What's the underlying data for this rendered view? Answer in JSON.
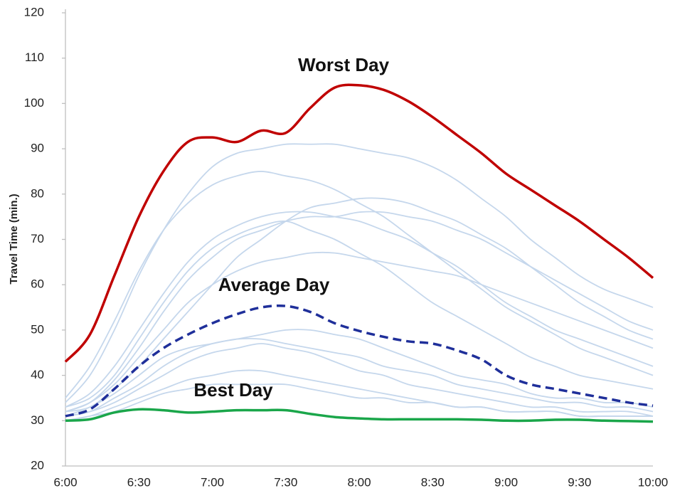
{
  "chart_data": {
    "type": "line",
    "y_label": "Travel Time (min.)",
    "categories": [
      "6:00",
      null,
      null,
      "6:30",
      null,
      null,
      "7:00",
      null,
      null,
      "7:30",
      null,
      null,
      "8:00",
      null,
      null,
      "8:30",
      null,
      null,
      "9:00",
      null,
      null,
      "9:30",
      null,
      null,
      "10:00"
    ],
    "ylim": [
      20,
      120
    ],
    "yticks": [
      20,
      30,
      40,
      50,
      60,
      70,
      80,
      90,
      100,
      110,
      120
    ],
    "annotations": [
      "Worst Day",
      "Average Day",
      "Best Day"
    ],
    "series": [
      {
        "color": "#c5d7ec",
        "values": [
          33,
          36,
          42,
          50,
          58,
          65,
          70,
          73,
          75,
          76,
          76,
          75,
          74,
          72,
          70,
          67,
          64,
          60,
          56,
          53,
          50,
          48,
          46,
          44,
          42
        ]
      },
      {
        "color": "#c5d7ec",
        "values": [
          34,
          40,
          50,
          62,
          72,
          80,
          86,
          89,
          90,
          91,
          91,
          91,
          90,
          89,
          88,
          86,
          83,
          79,
          75,
          70,
          66,
          62,
          59,
          57,
          55
        ]
      },
      {
        "color": "#c5d7ec",
        "values": [
          31,
          33,
          36,
          40,
          44,
          46,
          47,
          48,
          48,
          47,
          46,
          45,
          44,
          42,
          41,
          40,
          38,
          37,
          36,
          35,
          34,
          34,
          33,
          33,
          32
        ]
      },
      {
        "color": "#c5d7ec",
        "values": [
          30,
          31,
          33,
          35,
          37,
          39,
          40,
          41,
          41,
          40,
          39,
          38,
          37,
          36,
          35,
          34,
          33,
          33,
          32,
          32,
          32,
          31,
          31,
          31,
          31
        ]
      },
      {
        "color": "#c5d7ec",
        "values": [
          32,
          34,
          39,
          46,
          54,
          61,
          66,
          70,
          72,
          74,
          75,
          75,
          76,
          76,
          75,
          74,
          72,
          70,
          67,
          64,
          61,
          58,
          55,
          52,
          50
        ]
      },
      {
        "color": "#c5d7ec",
        "values": [
          31,
          32,
          35,
          38,
          42,
          45,
          47,
          48,
          49,
          50,
          50,
          49,
          48,
          46,
          44,
          42,
          40,
          39,
          38,
          36,
          35,
          35,
          34,
          34,
          33
        ]
      },
      {
        "color": "#c5d7ec",
        "values": [
          33,
          35,
          40,
          48,
          56,
          63,
          68,
          71,
          73,
          74,
          72,
          70,
          67,
          64,
          60,
          56,
          53,
          50,
          47,
          44,
          42,
          40,
          39,
          38,
          37
        ]
      },
      {
        "color": "#c5d7ec",
        "values": [
          32,
          33,
          37,
          42,
          48,
          54,
          60,
          66,
          70,
          74,
          77,
          78,
          79,
          79,
          78,
          76,
          74,
          71,
          68,
          64,
          60,
          56,
          53,
          50,
          48
        ]
      },
      {
        "color": "#c5d7ec",
        "values": [
          31,
          32,
          34,
          37,
          40,
          43,
          45,
          46,
          47,
          46,
          45,
          43,
          41,
          40,
          38,
          37,
          36,
          35,
          34,
          33,
          33,
          32,
          32,
          32,
          31
        ]
      },
      {
        "color": "#c5d7ec",
        "values": [
          35,
          42,
          52,
          63,
          72,
          78,
          82,
          84,
          85,
          84,
          83,
          81,
          78,
          75,
          71,
          67,
          63,
          59,
          55,
          52,
          49,
          46,
          44,
          42,
          40
        ]
      },
      {
        "color": "#c5d7ec",
        "values": [
          30,
          31,
          32,
          34,
          36,
          37,
          38,
          38,
          38,
          38,
          37,
          36,
          35,
          35,
          34,
          34,
          33,
          33,
          32,
          32,
          32,
          31,
          31,
          31,
          31
        ]
      },
      {
        "color": "#c5d7ec",
        "values": [
          32,
          34,
          38,
          44,
          50,
          56,
          60,
          63,
          65,
          66,
          67,
          67,
          66,
          65,
          64,
          63,
          62,
          60,
          58,
          56,
          54,
          52,
          50,
          48,
          46
        ]
      },
      {
        "color": "#c00000",
        "width": 3.5,
        "values": [
          43,
          49,
          62,
          75,
          85,
          91.5,
          92.5,
          91.5,
          94,
          93.5,
          99,
          103.5,
          104,
          103,
          100.5,
          97,
          93,
          89,
          84.5,
          81,
          77.5,
          74,
          70,
          66,
          61.5
        ]
      },
      {
        "color": "#1f2f9a",
        "width": 3.5,
        "dashed": true,
        "values": [
          31,
          32.5,
          37,
          42,
          46,
          49,
          51.5,
          53.5,
          55,
          55.3,
          54,
          51.5,
          49.8,
          48.5,
          47.5,
          47,
          45.5,
          43.5,
          40,
          38,
          37,
          36,
          35,
          34,
          33.3
        ]
      },
      {
        "color": "#1aa64a",
        "width": 3.5,
        "values": [
          30,
          30.3,
          31.8,
          32.5,
          32.3,
          31.8,
          32,
          32.3,
          32.3,
          32.3,
          31.5,
          30.8,
          30.5,
          30.3,
          30.3,
          30.3,
          30.3,
          30.2,
          30,
          30,
          30.2,
          30.2,
          30,
          29.9,
          29.8
        ]
      }
    ]
  }
}
